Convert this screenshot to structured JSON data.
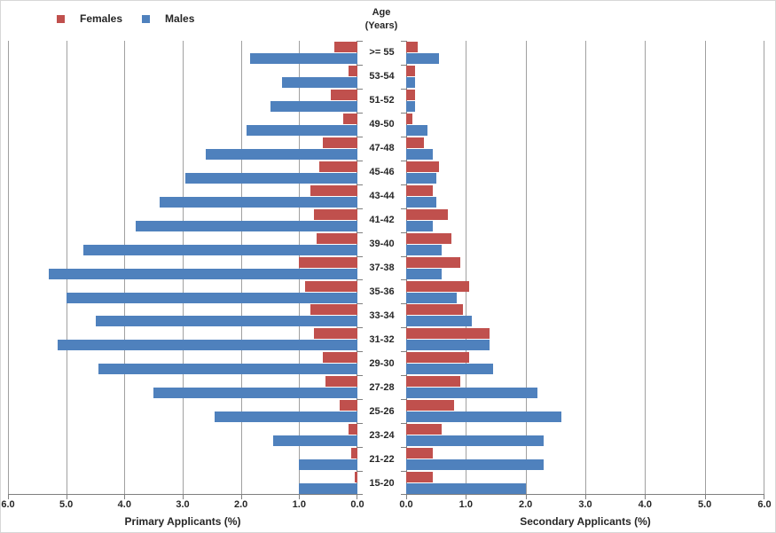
{
  "figure": {
    "center_axis_title": [
      "Age",
      "(Years)"
    ],
    "legend": [
      {
        "label": "Females",
        "color": "#C0504D"
      },
      {
        "label": "Males",
        "color": "#4F81BD"
      }
    ]
  },
  "chart_data": {
    "type": "bar",
    "subtype": "population-pyramid",
    "grid": true,
    "legend_position": "top-left",
    "categories": [
      ">= 55",
      "53-54",
      "51-52",
      "49-50",
      "47-48",
      "45-46",
      "43-44",
      "41-42",
      "39-40",
      "37-38",
      "35-36",
      "33-34",
      "31-32",
      "29-30",
      "27-28",
      "25-26",
      "23-24",
      "21-22",
      "15-20"
    ],
    "panels": [
      {
        "title": "Primary Applicants (%)",
        "side": "left",
        "direction": "right-to-left",
        "xlim": [
          0,
          6
        ],
        "tick_labels": [
          "6.0",
          "5.0",
          "4.0",
          "3.0",
          "2.0",
          "1.0",
          "0.0"
        ],
        "series": [
          {
            "name": "Females",
            "color": "#C0504D",
            "values": [
              0.4,
              0.15,
              0.45,
              0.25,
              0.6,
              0.65,
              0.8,
              0.75,
              0.7,
              1.0,
              0.9,
              0.8,
              0.75,
              0.6,
              0.55,
              0.3,
              0.15,
              0.1,
              0.05
            ]
          },
          {
            "name": "Males",
            "color": "#4F81BD",
            "values": [
              1.85,
              1.3,
              1.5,
              1.9,
              2.6,
              2.95,
              3.4,
              3.8,
              4.7,
              5.3,
              5.0,
              4.5,
              5.15,
              4.45,
              3.5,
              2.45,
              1.45,
              1.0,
              1.0
            ]
          }
        ]
      },
      {
        "title": "Secondary Applicants (%)",
        "side": "right",
        "direction": "left-to-right",
        "xlim": [
          0,
          6
        ],
        "tick_labels": [
          "0.0",
          "1.0",
          "2.0",
          "3.0",
          "4.0",
          "5.0",
          "6.0"
        ],
        "series": [
          {
            "name": "Females",
            "color": "#C0504D",
            "values": [
              0.2,
              0.15,
              0.15,
              0.1,
              0.3,
              0.55,
              0.45,
              0.7,
              0.75,
              0.9,
              1.05,
              0.95,
              1.4,
              1.05,
              0.9,
              0.8,
              0.6,
              0.45,
              0.45
            ]
          },
          {
            "name": "Males",
            "color": "#4F81BD",
            "values": [
              0.55,
              0.15,
              0.15,
              0.35,
              0.45,
              0.5,
              0.5,
              0.45,
              0.6,
              0.6,
              0.85,
              1.1,
              1.4,
              1.45,
              2.2,
              2.6,
              2.3,
              2.3,
              2.0
            ]
          }
        ]
      }
    ]
  }
}
